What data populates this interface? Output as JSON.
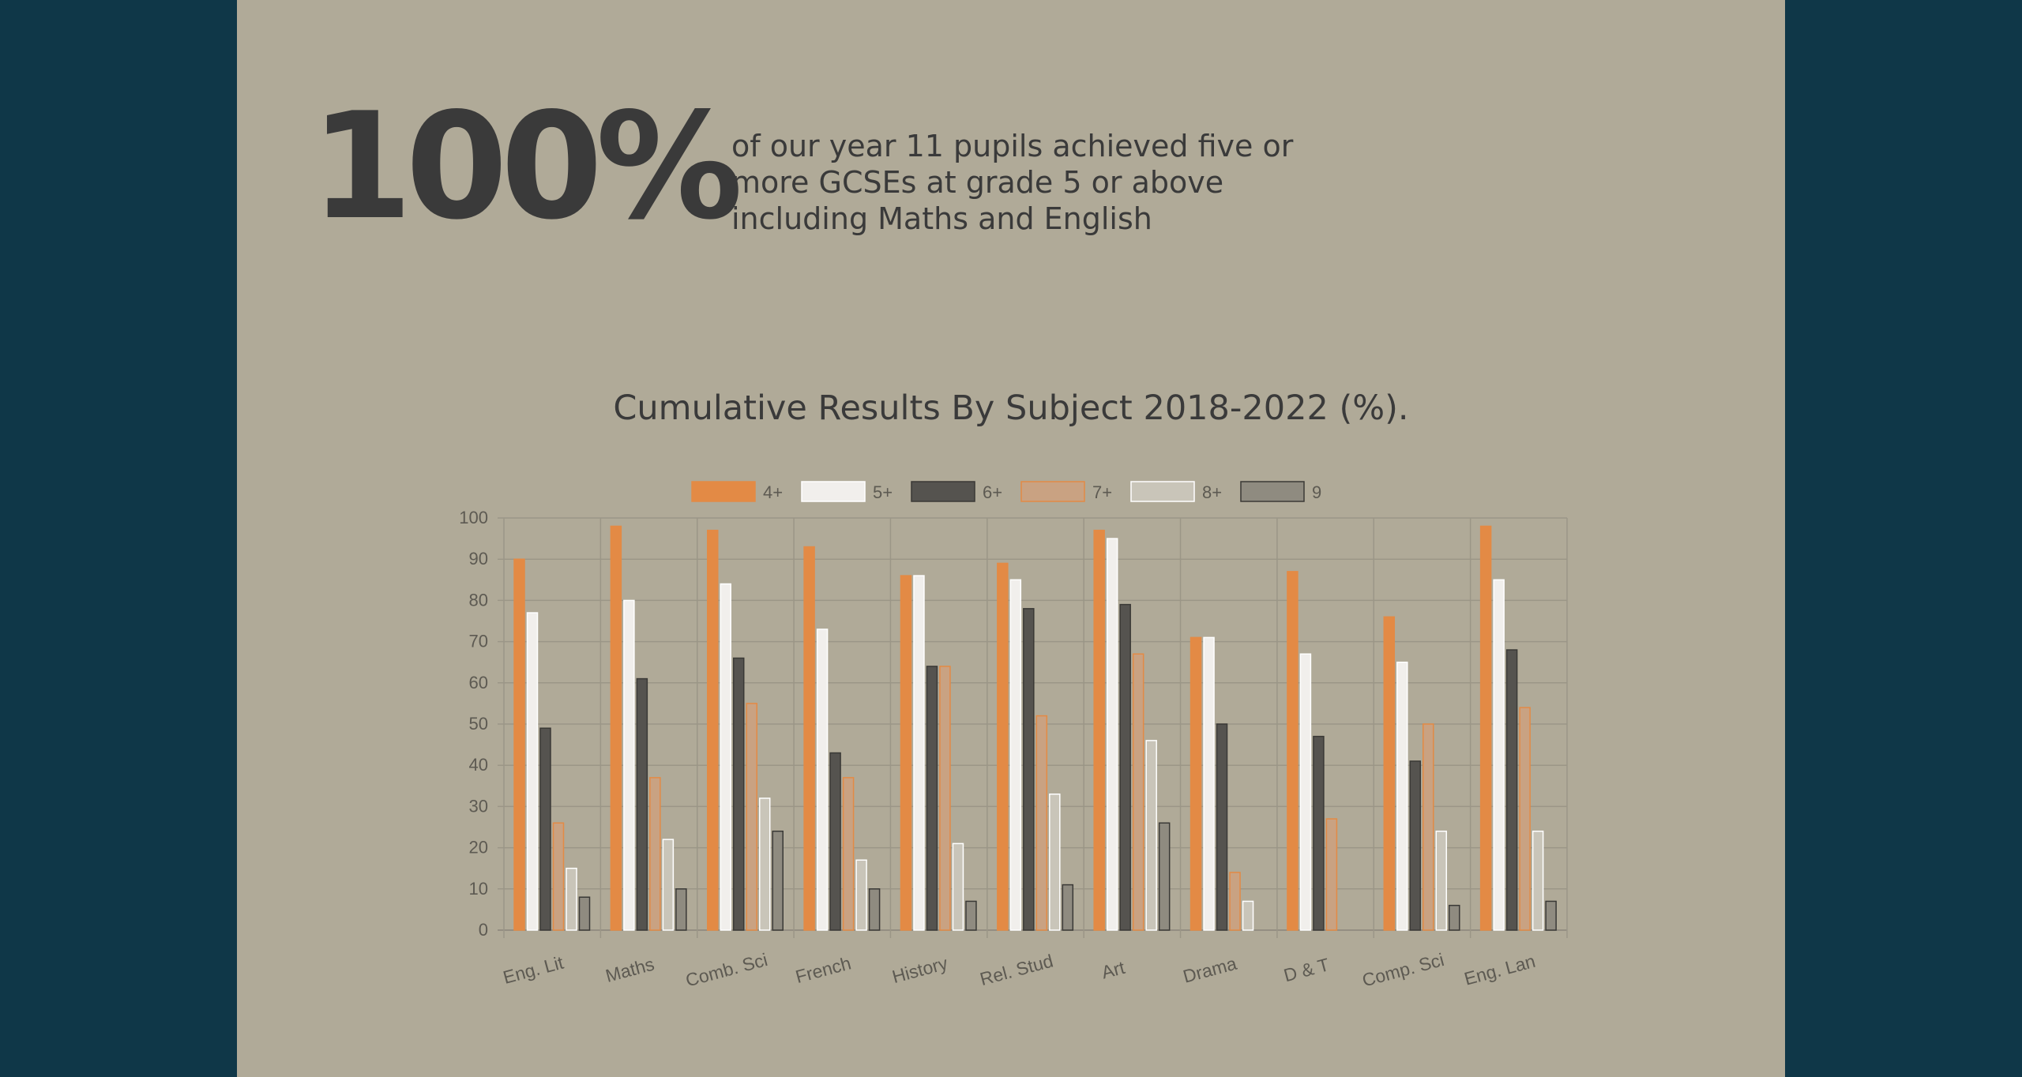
{
  "headline": {
    "value": "100%",
    "text": "of our year 11 pupils achieved five or more GCSEs at grade 5 or above including Maths and English"
  },
  "colors": {
    "background": "#0f3748",
    "panel": "#b0aa98",
    "text": "#3a3a3a"
  },
  "chart_data": {
    "type": "bar",
    "title": "Cumulative Results By Subject 2018-2022 (%).",
    "xlabel": "",
    "ylabel": "",
    "ylim": [
      0,
      100
    ],
    "yticks": [
      0,
      10,
      20,
      30,
      40,
      50,
      60,
      70,
      80,
      90,
      100
    ],
    "grid": true,
    "legend_position": "top",
    "categories": [
      "Eng. Lit",
      "Maths",
      "Comb. Sci",
      "French",
      "History",
      "Rel. Stud",
      "Art",
      "Drama",
      "D & T",
      "Comp. Sci",
      "Eng. Lan"
    ],
    "series": [
      {
        "name": "4+",
        "fill": "#e38a45",
        "stroke": "#e38a45",
        "values": [
          90,
          98,
          97,
          93,
          86,
          89,
          97,
          71,
          87,
          76,
          98
        ]
      },
      {
        "name": "5+",
        "fill": "#f1efec",
        "stroke": "#ffffff",
        "values": [
          77,
          80,
          84,
          73,
          86,
          85,
          95,
          71,
          67,
          65,
          85
        ]
      },
      {
        "name": "6+",
        "fill": "#55534f",
        "stroke": "#3a3936",
        "values": [
          49,
          61,
          66,
          43,
          64,
          78,
          79,
          50,
          47,
          41,
          68
        ]
      },
      {
        "name": "7+",
        "fill": "#c9a282",
        "stroke": "#e38a45",
        "values": [
          26,
          37,
          55,
          37,
          64,
          52,
          67,
          14,
          27,
          50,
          54
        ]
      },
      {
        "name": "8+",
        "fill": "#c9c5b9",
        "stroke": "#ffffff",
        "values": [
          15,
          22,
          32,
          17,
          21,
          33,
          46,
          7,
          0,
          24,
          24
        ]
      },
      {
        "name": "9",
        "fill": "#8f8b80",
        "stroke": "#3a3936",
        "values": [
          8,
          10,
          24,
          10,
          7,
          11,
          26,
          0,
          0,
          6,
          7
        ]
      }
    ]
  }
}
